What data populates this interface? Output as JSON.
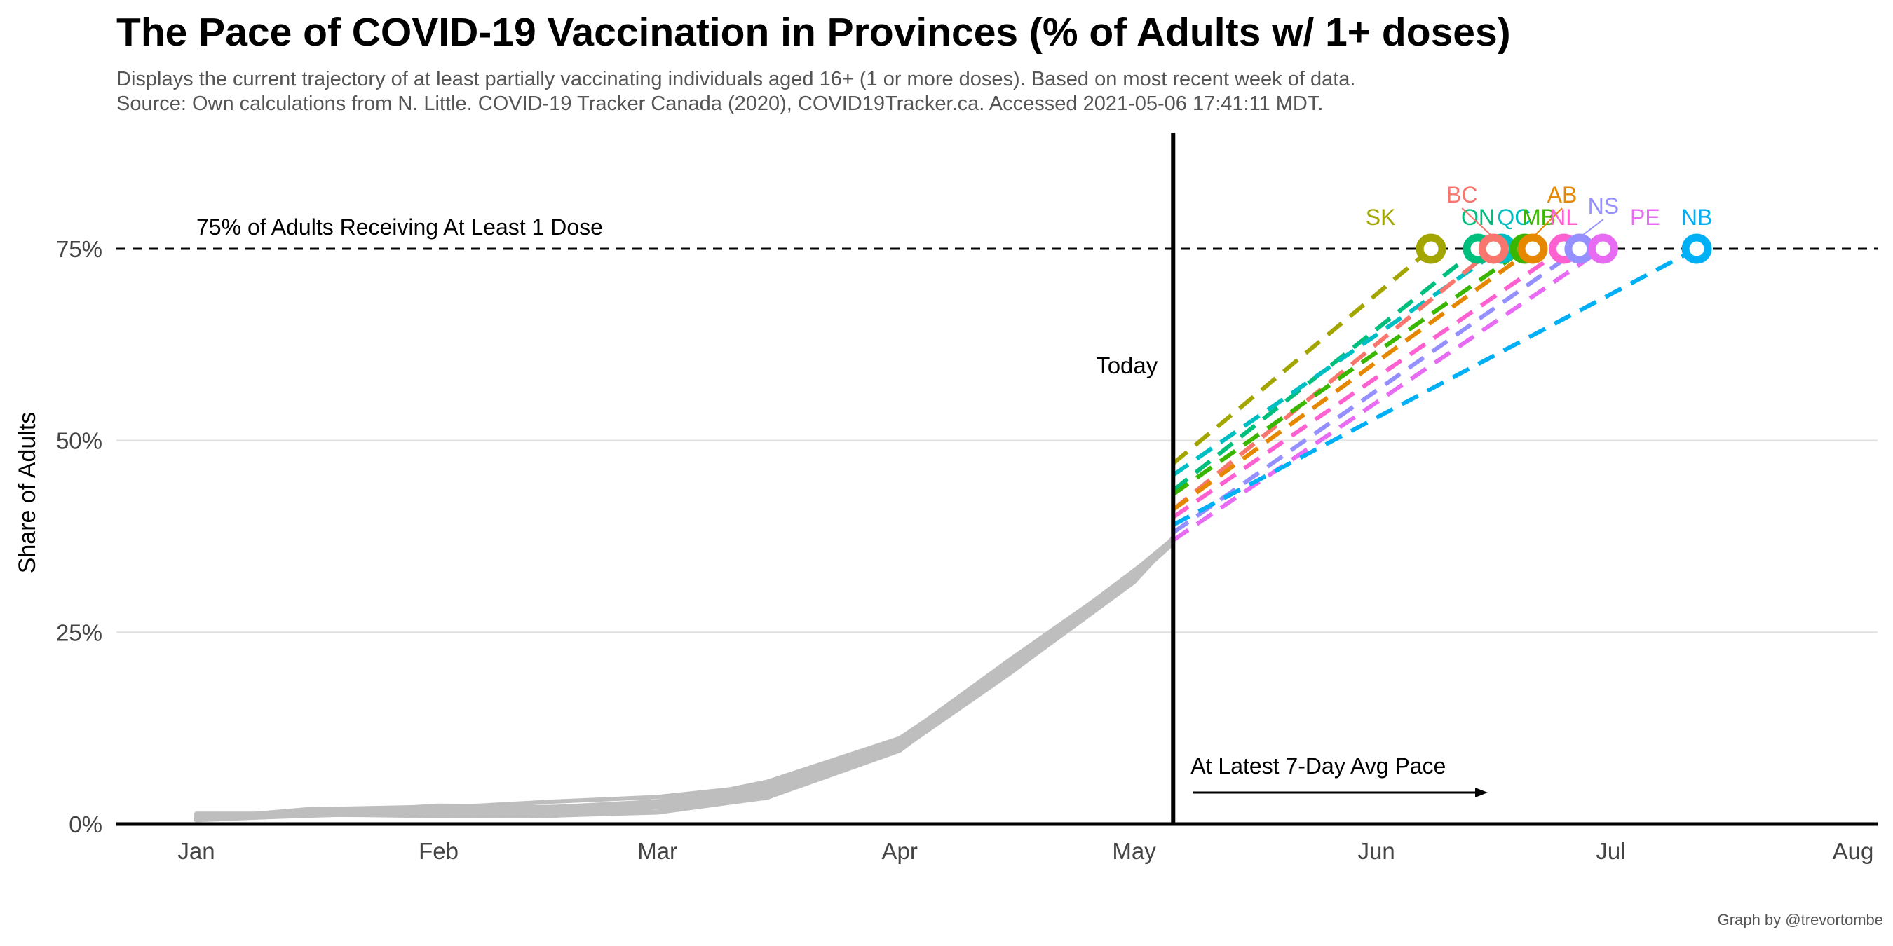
{
  "chart_data": {
    "type": "line",
    "title": "The Pace of COVID-19 Vaccination in Provinces (% of Adults w/ 1+ doses)",
    "subtitle": "Displays the current trajectory of at least partially vaccinating individuals aged 16+ (1 or more doses). Based on most recent week of data.",
    "source": "Source: Own calculations from N. Little. COVID-19 Tracker Canada (2020), COVID19Tracker.ca. Accessed 2021-05-06 17:41:11 MDT.",
    "caption": "Graph by @trevortombe",
    "ylabel": "Share of Adults",
    "xlabel": "",
    "ylim": [
      0,
      75
    ],
    "xlim": [
      "2021-01-01",
      "2021-08-01"
    ],
    "x_ticks": [
      {
        "date": "2021-01-01",
        "label": "Jan"
      },
      {
        "date": "2021-02-01",
        "label": "Feb"
      },
      {
        "date": "2021-03-01",
        "label": "Mar"
      },
      {
        "date": "2021-04-01",
        "label": "Apr"
      },
      {
        "date": "2021-05-01",
        "label": "May"
      },
      {
        "date": "2021-06-01",
        "label": "Jun"
      },
      {
        "date": "2021-07-01",
        "label": "Jul"
      },
      {
        "date": "2021-08-01",
        "label": "Aug"
      }
    ],
    "y_ticks": [
      {
        "value": 0,
        "label": "0%"
      },
      {
        "value": 25,
        "label": "25%"
      },
      {
        "value": 50,
        "label": "50%"
      },
      {
        "value": 75,
        "label": "75%"
      }
    ],
    "grid": "horizontal",
    "target": {
      "value": 75,
      "label": "75% of Adults Receiving At Least 1 Dose"
    },
    "today": {
      "date": "2021-05-06",
      "label": "Today"
    },
    "pace_annotation": "At Latest 7-Day Avg Pace",
    "history_color": "#bebebe",
    "history_points": [
      {
        "date": "2021-01-01",
        "min": 0.4,
        "max": 1.3
      },
      {
        "date": "2021-01-15",
        "min": 1.0,
        "max": 2.8
      },
      {
        "date": "2021-02-01",
        "min": 1.3,
        "max": 3.3
      },
      {
        "date": "2021-02-15",
        "min": 1.5,
        "max": 3.6
      },
      {
        "date": "2021-03-01",
        "min": 2.0,
        "max": 5.0
      },
      {
        "date": "2021-03-15",
        "min": 4.0,
        "max": 9.0
      },
      {
        "date": "2021-04-01",
        "min": 10.0,
        "max": 17.0
      },
      {
        "date": "2021-04-15",
        "min": 20.0,
        "max": 29.0
      },
      {
        "date": "2021-05-01",
        "min": 32.0,
        "max": 42.0
      },
      {
        "date": "2021-05-06",
        "min": 36.5,
        "max": 46.5
      }
    ],
    "series": [
      {
        "name": "SK",
        "color": "#a3a500",
        "today_value": 47,
        "reach_date": "2021-06-08"
      },
      {
        "name": "ON",
        "color": "#00bf7d",
        "today_value": 43.5,
        "reach_date": "2021-06-14"
      },
      {
        "name": "QC",
        "color": "#00bfc4",
        "today_value": 45.5,
        "reach_date": "2021-06-17"
      },
      {
        "name": "BC",
        "color": "#f8766d",
        "today_value": 41,
        "reach_date": "2021-06-16"
      },
      {
        "name": "MB",
        "color": "#39b600",
        "today_value": 43,
        "reach_date": "2021-06-20"
      },
      {
        "name": "AB",
        "color": "#e58700",
        "today_value": 41,
        "reach_date": "2021-06-21"
      },
      {
        "name": "NL",
        "color": "#fd61d1",
        "today_value": 40,
        "reach_date": "2021-06-25"
      },
      {
        "name": "NS",
        "color": "#9590ff",
        "today_value": 38,
        "reach_date": "2021-06-27"
      },
      {
        "name": "PE",
        "color": "#e76bf3",
        "today_value": 37,
        "reach_date": "2021-06-30"
      },
      {
        "name": "NB",
        "color": "#00b0f6",
        "today_value": 39,
        "reach_date": "2021-07-12"
      }
    ]
  }
}
